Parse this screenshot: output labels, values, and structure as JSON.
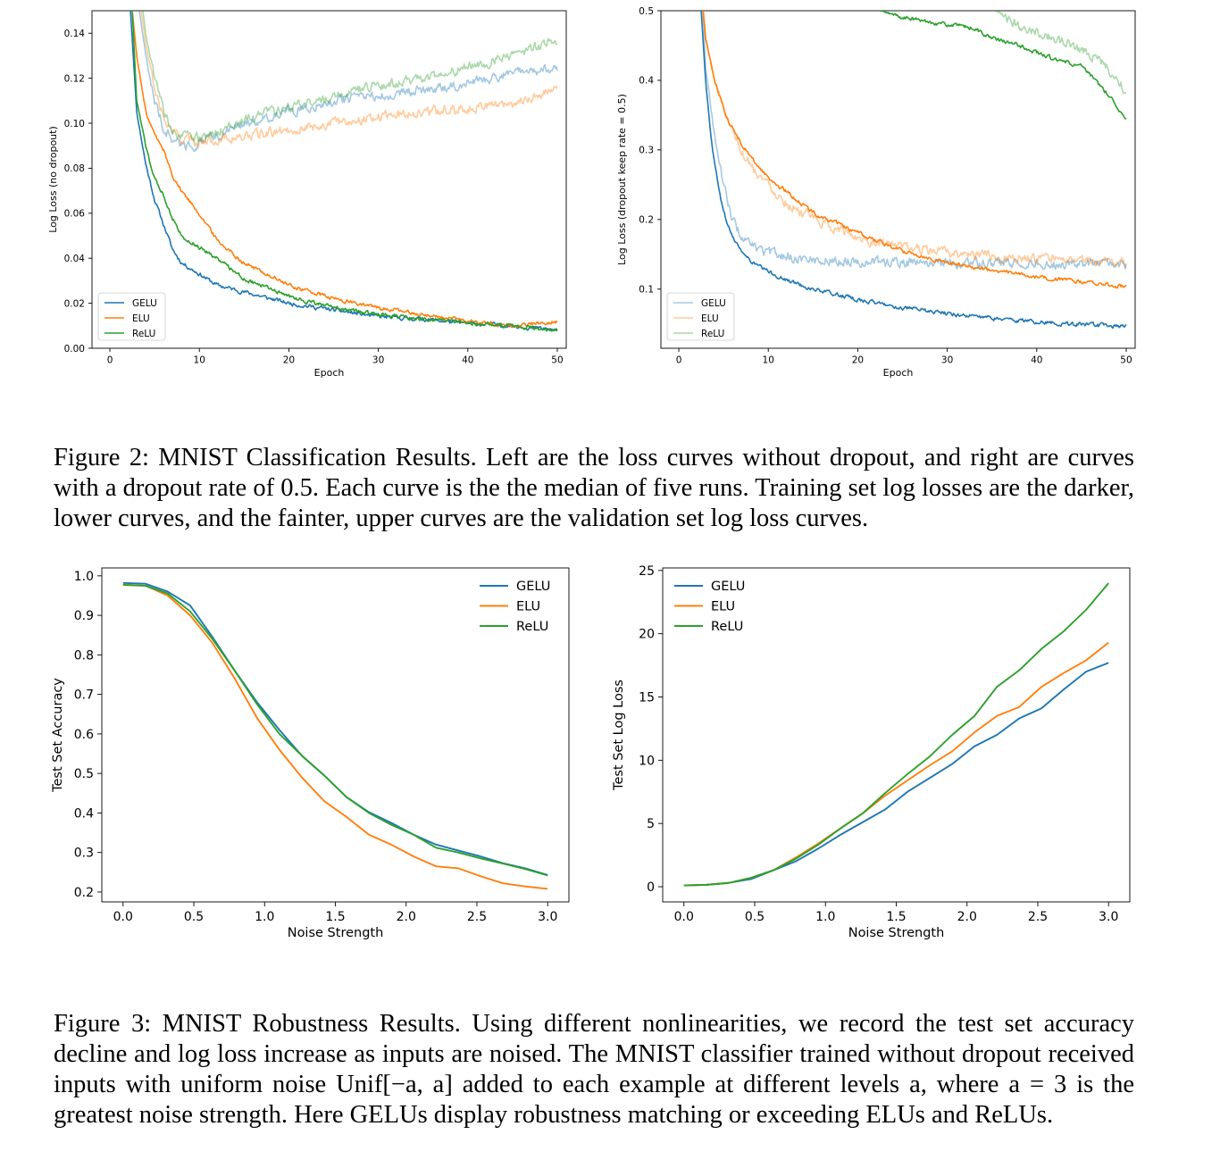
{
  "figure2": {
    "caption": "Figure 2: MNIST Classification Results. Left are the loss curves without dropout, and right are curves with a dropout rate of 0.5. Each curve is the the median of five runs. Training set log losses are the darker, lower curves, and the fainter, upper curves are the validation set log loss curves."
  },
  "figure3": {
    "caption": "Figure 3: MNIST Robustness Results. Using different nonlinearities, we record the test set accuracy decline and log loss increase as inputs are noised. The MNIST classifier trained without dropout received inputs with uniform noise Unif[−a, a] added to each example at different levels a, where a = 3 is the greatest noise strength. Here GELUs display robustness matching or exceeding ELUs and ReLUs."
  },
  "colors": {
    "GELU": "#1f77b4",
    "ELU": "#ff7f0e",
    "ReLU": "#2ca02c"
  },
  "chart_data": [
    {
      "id": "top-left",
      "type": "line",
      "xlabel": "Epoch",
      "ylabel": "Log Loss (no dropout)",
      "xlim": [
        -2,
        51
      ],
      "ylim": [
        0,
        0.15
      ],
      "xticks": [
        0,
        10,
        20,
        30,
        40,
        50
      ],
      "yticks": [
        0.0,
        0.02,
        0.04,
        0.06,
        0.08,
        0.1,
        0.12,
        0.14
      ],
      "ytick_labels": [
        "0.00",
        "0.02",
        "0.04",
        "0.06",
        "0.08",
        "0.10",
        "0.12",
        "0.14"
      ],
      "legend_position": "lower-left",
      "legend": [
        "GELU",
        "ELU",
        "ReLU"
      ],
      "series": [
        {
          "name": "GELU",
          "role": "train",
          "x": [
            2.3,
            3,
            4,
            5,
            6,
            7,
            8,
            10,
            12,
            15,
            20,
            25,
            30,
            35,
            40,
            45,
            50
          ],
          "y": [
            0.15,
            0.105,
            0.082,
            0.066,
            0.055,
            0.044,
            0.038,
            0.033,
            0.028,
            0.025,
            0.02,
            0.017,
            0.014,
            0.013,
            0.011,
            0.01,
            0.008
          ]
        },
        {
          "name": "ELU",
          "role": "train",
          "x": [
            2.5,
            3,
            4,
            5,
            6,
            7,
            8,
            10,
            12,
            15,
            20,
            25,
            30,
            35,
            40,
            45,
            50
          ],
          "y": [
            0.15,
            0.13,
            0.105,
            0.095,
            0.088,
            0.077,
            0.07,
            0.06,
            0.048,
            0.038,
            0.028,
            0.022,
            0.018,
            0.015,
            0.012,
            0.01,
            0.012
          ]
        },
        {
          "name": "ReLU",
          "role": "train",
          "x": [
            2.5,
            3,
            4,
            5,
            6,
            7,
            8,
            10,
            12,
            15,
            20,
            25,
            30,
            35,
            40,
            45,
            50
          ],
          "y": [
            0.15,
            0.11,
            0.09,
            0.075,
            0.068,
            0.058,
            0.05,
            0.045,
            0.04,
            0.031,
            0.023,
            0.018,
            0.015,
            0.013,
            0.011,
            0.01,
            0.008
          ]
        },
        {
          "name": "GELU",
          "role": "validation",
          "x": [
            3.3,
            4,
            5,
            6,
            7,
            8,
            10,
            12,
            15,
            20,
            25,
            30,
            35,
            40,
            45,
            50
          ],
          "y": [
            0.15,
            0.13,
            0.11,
            0.098,
            0.093,
            0.09,
            0.091,
            0.094,
            0.1,
            0.105,
            0.11,
            0.112,
            0.115,
            0.118,
            0.122,
            0.125
          ]
        },
        {
          "name": "ELU",
          "role": "validation",
          "x": [
            3.5,
            4,
            5,
            6,
            7,
            8,
            10,
            12,
            15,
            20,
            25,
            30,
            35,
            40,
            45,
            50
          ],
          "y": [
            0.15,
            0.135,
            0.115,
            0.102,
            0.096,
            0.093,
            0.092,
            0.093,
            0.094,
            0.097,
            0.1,
            0.103,
            0.105,
            0.107,
            0.109,
            0.115
          ]
        },
        {
          "name": "ReLU",
          "role": "validation",
          "x": [
            3.7,
            4,
            5,
            6,
            7,
            8,
            10,
            12,
            15,
            20,
            25,
            30,
            35,
            40,
            45,
            50
          ],
          "y": [
            0.15,
            0.14,
            0.12,
            0.105,
            0.097,
            0.094,
            0.093,
            0.096,
            0.102,
            0.107,
            0.112,
            0.117,
            0.12,
            0.125,
            0.13,
            0.137
          ]
        }
      ]
    },
    {
      "id": "top-right",
      "type": "line",
      "xlabel": "Epoch",
      "ylabel": "Log Loss (dropout keep rate = 0.5)",
      "xlim": [
        -2,
        51
      ],
      "ylim": [
        0.015,
        0.5
      ],
      "xticks": [
        0,
        10,
        20,
        30,
        40,
        50
      ],
      "yticks": [
        0.1,
        0.2,
        0.3,
        0.4,
        0.5
      ],
      "ytick_labels": [
        "0.1",
        "0.2",
        "0.3",
        "0.4",
        "0.5"
      ],
      "legend_position": "lower-left",
      "legend": [
        "GELU",
        "ELU",
        "ReLU"
      ],
      "series": [
        {
          "name": "GELU",
          "role": "train",
          "x": [
            2.5,
            3,
            3.5,
            4,
            5,
            6,
            7,
            8,
            10,
            12,
            15,
            20,
            25,
            30,
            35,
            40,
            45,
            50
          ],
          "y": [
            0.5,
            0.4,
            0.33,
            0.28,
            0.21,
            0.175,
            0.155,
            0.14,
            0.125,
            0.113,
            0.1,
            0.085,
            0.073,
            0.065,
            0.058,
            0.053,
            0.049,
            0.046
          ]
        },
        {
          "name": "ELU",
          "role": "train",
          "x": [
            2.7,
            3,
            4,
            5,
            6,
            7,
            8,
            10,
            12,
            15,
            20,
            25,
            30,
            35,
            40,
            45,
            50
          ],
          "y": [
            0.5,
            0.46,
            0.4,
            0.36,
            0.33,
            0.31,
            0.29,
            0.26,
            0.24,
            0.21,
            0.18,
            0.155,
            0.138,
            0.127,
            0.118,
            0.11,
            0.104
          ]
        },
        {
          "name": "ReLU",
          "role": "train",
          "x": [
            22.5,
            25,
            30,
            33,
            35,
            38,
            40,
            42,
            45,
            48,
            50
          ],
          "y": [
            0.5,
            0.49,
            0.48,
            0.475,
            0.46,
            0.45,
            0.44,
            0.43,
            0.42,
            0.38,
            0.345
          ]
        },
        {
          "name": "GELU",
          "role": "validation",
          "x": [
            2.7,
            3,
            4,
            5,
            6,
            7,
            8,
            10,
            12,
            15,
            20,
            25,
            30,
            35,
            40,
            45,
            50
          ],
          "y": [
            0.5,
            0.42,
            0.32,
            0.25,
            0.2,
            0.175,
            0.162,
            0.152,
            0.147,
            0.142,
            0.14,
            0.138,
            0.138,
            0.137,
            0.136,
            0.136,
            0.135
          ]
        },
        {
          "name": "ELU",
          "role": "validation",
          "x": [
            2.8,
            3,
            4,
            5,
            6,
            7,
            8,
            10,
            12,
            15,
            20,
            25,
            30,
            35,
            40,
            45,
            50
          ],
          "y": [
            0.5,
            0.46,
            0.4,
            0.36,
            0.33,
            0.3,
            0.28,
            0.25,
            0.225,
            0.2,
            0.175,
            0.16,
            0.152,
            0.147,
            0.143,
            0.14,
            0.138
          ]
        },
        {
          "name": "ReLU",
          "role": "validation",
          "x": [
            35.3,
            37,
            40,
            42,
            45,
            47,
            50
          ],
          "y": [
            0.5,
            0.485,
            0.47,
            0.46,
            0.445,
            0.43,
            0.385
          ]
        }
      ]
    },
    {
      "id": "bottom-left",
      "type": "line",
      "xlabel": "Noise Strength",
      "ylabel": "Test Set Accuracy",
      "xlim": [
        -0.15,
        3.15
      ],
      "ylim": [
        0.175,
        1.02
      ],
      "xticks": [
        0.0,
        0.5,
        1.0,
        1.5,
        2.0,
        2.5,
        3.0
      ],
      "xtick_labels": [
        "0.0",
        "0.5",
        "1.0",
        "1.5",
        "2.0",
        "2.5",
        "3.0"
      ],
      "yticks": [
        0.2,
        0.3,
        0.4,
        0.5,
        0.6,
        0.7,
        0.8,
        0.9,
        1.0
      ],
      "ytick_labels": [
        "0.2",
        "0.3",
        "0.4",
        "0.5",
        "0.6",
        "0.7",
        "0.8",
        "0.9",
        "1.0"
      ],
      "legend_position": "upper-right",
      "legend": [
        "GELU",
        "ELU",
        "ReLU"
      ],
      "x": [
        0.0,
        0.158,
        0.316,
        0.474,
        0.632,
        0.789,
        0.947,
        1.105,
        1.263,
        1.421,
        1.579,
        1.737,
        1.895,
        2.053,
        2.211,
        2.368,
        2.526,
        2.684,
        2.842,
        3.0
      ],
      "series": [
        {
          "name": "GELU",
          "values": [
            0.982,
            0.98,
            0.96,
            0.925,
            0.845,
            0.76,
            0.68,
            0.61,
            0.545,
            0.495,
            0.44,
            0.402,
            0.375,
            0.345,
            0.32,
            0.305,
            0.29,
            0.273,
            0.26,
            0.243
          ]
        },
        {
          "name": "ELU",
          "values": [
            0.978,
            0.975,
            0.95,
            0.9,
            0.83,
            0.74,
            0.64,
            0.56,
            0.49,
            0.43,
            0.39,
            0.345,
            0.32,
            0.29,
            0.265,
            0.26,
            0.24,
            0.222,
            0.214,
            0.208
          ]
        },
        {
          "name": "ReLU",
          "values": [
            0.977,
            0.975,
            0.955,
            0.91,
            0.84,
            0.76,
            0.675,
            0.6,
            0.545,
            0.495,
            0.44,
            0.4,
            0.37,
            0.345,
            0.312,
            0.3,
            0.285,
            0.272,
            0.258,
            0.242
          ]
        }
      ]
    },
    {
      "id": "bottom-right",
      "type": "line",
      "xlabel": "Noise Strength",
      "ylabel": "Test Set Log Loss",
      "xlim": [
        -0.15,
        3.15
      ],
      "ylim": [
        -1.2,
        25.2
      ],
      "xticks": [
        0.0,
        0.5,
        1.0,
        1.5,
        2.0,
        2.5,
        3.0
      ],
      "xtick_labels": [
        "0.0",
        "0.5",
        "1.0",
        "1.5",
        "2.0",
        "2.5",
        "3.0"
      ],
      "yticks": [
        0,
        5,
        10,
        15,
        20,
        25
      ],
      "ytick_labels": [
        "0",
        "5",
        "10",
        "15",
        "20",
        "25"
      ],
      "legend_position": "upper-left",
      "legend": [
        "GELU",
        "ELU",
        "ReLU"
      ],
      "x": [
        0.0,
        0.158,
        0.316,
        0.474,
        0.632,
        0.789,
        0.947,
        1.105,
        1.263,
        1.421,
        1.579,
        1.737,
        1.895,
        2.053,
        2.211,
        2.368,
        2.526,
        2.684,
        2.842,
        3.0
      ],
      "series": [
        {
          "name": "GELU",
          "values": [
            0.1,
            0.15,
            0.3,
            0.6,
            1.3,
            2.0,
            3.0,
            4.1,
            5.1,
            6.1,
            7.5,
            8.6,
            9.7,
            11.1,
            12.0,
            13.3,
            14.1,
            15.6,
            17.0,
            17.7
          ]
        },
        {
          "name": "ELU",
          "values": [
            0.1,
            0.15,
            0.3,
            0.7,
            1.3,
            2.3,
            3.4,
            4.6,
            5.8,
            7.2,
            8.4,
            9.6,
            10.7,
            12.2,
            13.5,
            14.2,
            15.8,
            16.9,
            17.9,
            19.3
          ]
        },
        {
          "name": "ReLU",
          "values": [
            0.1,
            0.15,
            0.3,
            0.7,
            1.3,
            2.2,
            3.3,
            4.6,
            5.8,
            7.4,
            8.9,
            10.3,
            12.0,
            13.5,
            15.8,
            17.1,
            18.8,
            20.2,
            21.9,
            24.0
          ]
        }
      ]
    }
  ]
}
